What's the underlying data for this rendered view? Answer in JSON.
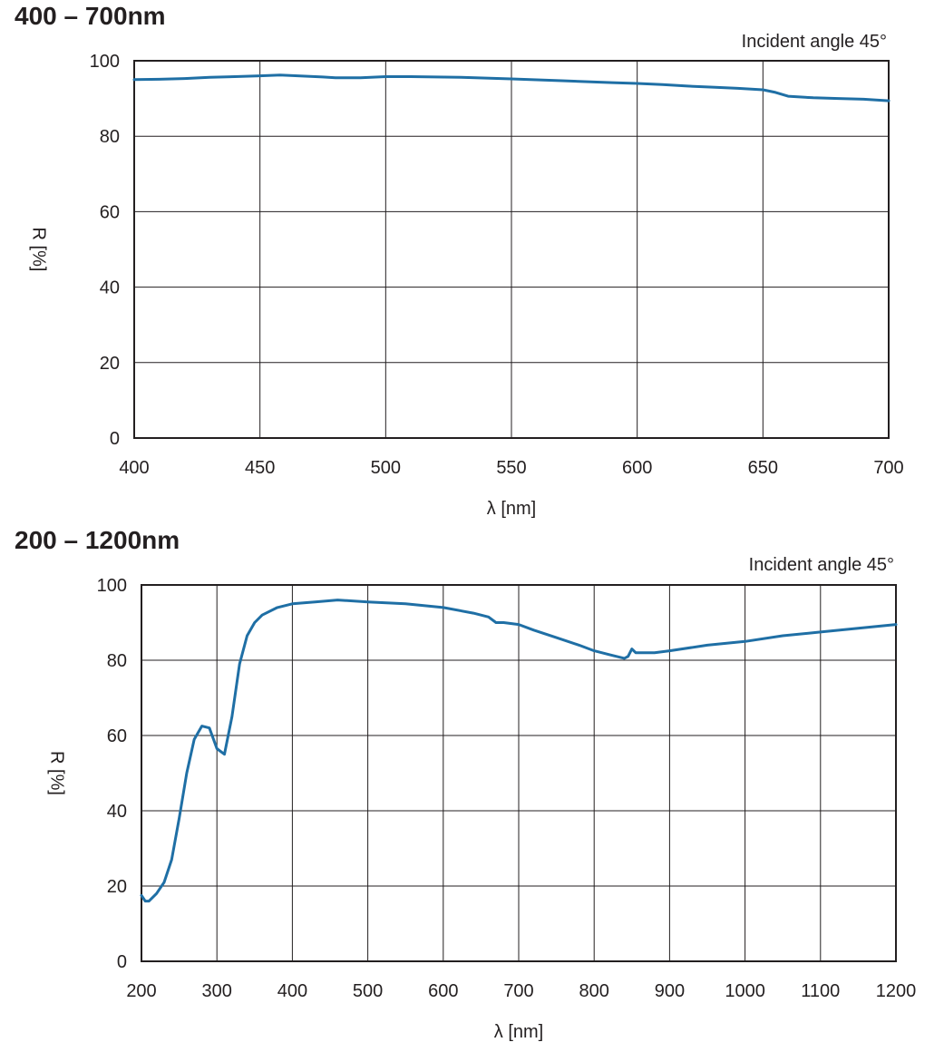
{
  "chart_data": [
    {
      "type": "line",
      "title": "400 – 700nm",
      "annotation": "Incident angle 45°",
      "xlabel": "λ [nm]",
      "ylabel": "R [%]",
      "xlim": [
        400,
        700
      ],
      "ylim": [
        0,
        100
      ],
      "xticks": [
        400,
        450,
        500,
        550,
        600,
        650,
        700
      ],
      "yticks": [
        0,
        20,
        40,
        60,
        80,
        100
      ],
      "grid": true,
      "line_color": "#1f6fa5",
      "series": [
        {
          "x": [
            400,
            410,
            420,
            430,
            440,
            450,
            458,
            465,
            475,
            480,
            490,
            500,
            510,
            520,
            530,
            550,
            570,
            590,
            600,
            610,
            620,
            630,
            640,
            650,
            655,
            660,
            670,
            680,
            690,
            700
          ],
          "y": [
            95.0,
            95.1,
            95.3,
            95.6,
            95.8,
            96.0,
            96.2,
            96.0,
            95.7,
            95.5,
            95.5,
            95.8,
            95.8,
            95.7,
            95.6,
            95.2,
            94.7,
            94.2,
            94.0,
            93.7,
            93.3,
            93.0,
            92.7,
            92.3,
            91.6,
            90.6,
            90.2,
            90.0,
            89.8,
            89.4
          ]
        }
      ]
    },
    {
      "type": "line",
      "title": "200 – 1200nm",
      "annotation": "Incident angle 45°",
      "xlabel": "λ [nm]",
      "ylabel": "R [%]",
      "xlim": [
        200,
        1200
      ],
      "ylim": [
        0,
        100
      ],
      "xticks": [
        200,
        300,
        400,
        500,
        600,
        700,
        800,
        900,
        1000,
        1100,
        1200
      ],
      "yticks": [
        0,
        20,
        40,
        60,
        80,
        100
      ],
      "grid": true,
      "line_color": "#1f6fa5",
      "series": [
        {
          "x": [
            200,
            205,
            210,
            220,
            230,
            240,
            250,
            260,
            270,
            280,
            290,
            300,
            310,
            320,
            330,
            340,
            350,
            360,
            380,
            400,
            430,
            460,
            500,
            550,
            600,
            640,
            660,
            670,
            680,
            700,
            720,
            750,
            780,
            800,
            820,
            840,
            845,
            850,
            855,
            860,
            880,
            900,
            950,
            1000,
            1050,
            1100,
            1150,
            1200
          ],
          "y": [
            17.5,
            16.0,
            16.0,
            18.0,
            21.0,
            27.0,
            38.0,
            50.0,
            59.0,
            62.5,
            62.0,
            56.5,
            55.0,
            65.0,
            79.0,
            86.5,
            90.0,
            92.0,
            94.0,
            95.0,
            95.5,
            96.0,
            95.5,
            95.0,
            94.0,
            92.5,
            91.5,
            90.0,
            90.0,
            89.5,
            88.0,
            86.0,
            84.0,
            82.5,
            81.5,
            80.5,
            81.0,
            83.0,
            82.0,
            82.0,
            82.0,
            82.5,
            84.0,
            85.0,
            86.5,
            87.5,
            88.5,
            89.5
          ]
        }
      ]
    }
  ]
}
